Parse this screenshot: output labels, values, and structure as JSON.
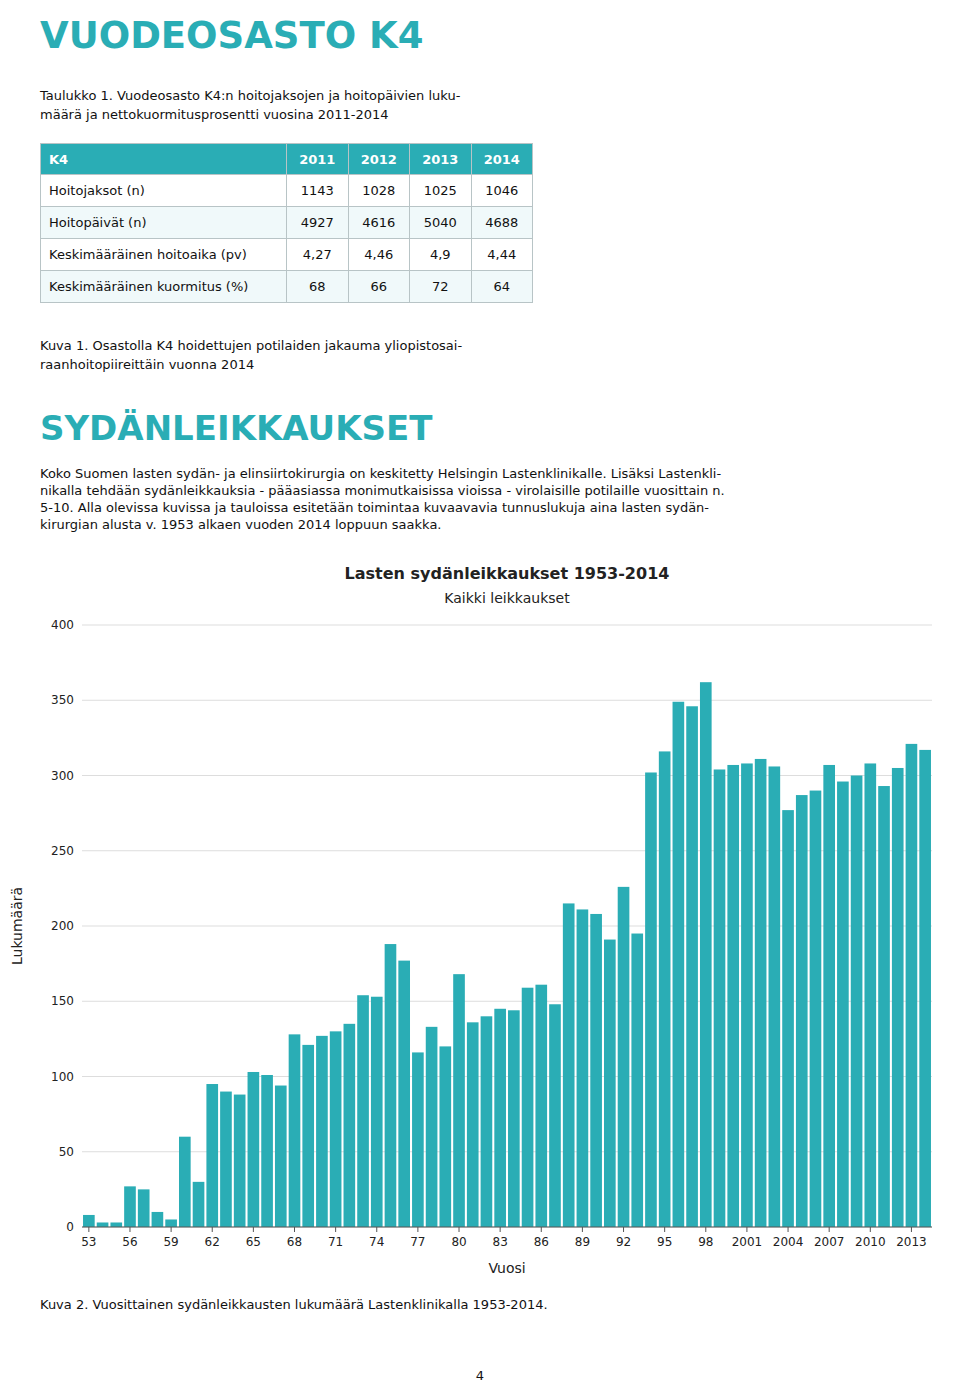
{
  "page_title": "VUODEOSASTO K4",
  "table_caption": [
    "Taulukko 1. Vuodeosasto K4:n hoitojaksojen ja hoitopäivien luku-",
    "määrä ja nettokuormitusprosentti vuosina 2011-2014"
  ],
  "table": {
    "header": [
      "K4",
      "2011",
      "2012",
      "2013",
      "2014"
    ],
    "rows": [
      [
        "Hoitojaksot (n)",
        "1143",
        "1028",
        "1025",
        "1046"
      ],
      [
        "Hoitopäivät (n)",
        "4927",
        "4616",
        "5040",
        "4688"
      ],
      [
        "Keskimääräinen hoitoaika (pv)",
        "4,27",
        "4,46",
        "4,9",
        "4,44"
      ],
      [
        "Keskimääräinen kuormitus (%)",
        "68",
        "66",
        "72",
        "64"
      ]
    ],
    "header_color": "#2aadb5"
  },
  "kuva1_caption": [
    "Kuva 1. Osastolla K4 hoidettujen potilaiden jakauma yliopistosai-",
    "raanhoitopiireittäin vuonna 2014"
  ],
  "section_title": "SYDÄNLEIKKAUKSET",
  "body_text": [
    "Koko Suomen lasten sydän- ja elinsiirtokirurgia on keskitetty Helsingin Lastenklinikalle. Lisäksi Lastenkli-",
    "nikalla tehdään sydänleikkauksia - pääasiassa monimutkaisissa vioissa - virolaisille potilaille vuosittain n.",
    "5-10. Alla olevissa kuvissa ja tauloissa esitetään toimintaa kuvaavavia tunnuslukuja aina lasten sydän-",
    "kirurgian alusta v. 1953 alkaen vuoden 2014 loppuun saakka."
  ],
  "chart_data": {
    "type": "bar",
    "title": "Lasten sydänleikkaukset 1953-2014",
    "subtitle": "Kaikki leikkaukset",
    "x_label": "Vuosi",
    "y_label": "Lukumäärä",
    "color": "#2aadb5",
    "categories": [
      "53",
      null,
      null,
      "56",
      null,
      null,
      "59",
      null,
      null,
      "62",
      null,
      null,
      "65",
      null,
      null,
      "68",
      null,
      null,
      "71",
      null,
      null,
      "74",
      null,
      null,
      "77",
      null,
      null,
      "80",
      null,
      null,
      "83",
      null,
      null,
      "86",
      null,
      null,
      "89",
      null,
      null,
      "92",
      null,
      null,
      "95",
      null,
      null,
      "98",
      null,
      null,
      "2001",
      null,
      null,
      "2004",
      null,
      null,
      "2007",
      null,
      null,
      "2010",
      null,
      null,
      "2013",
      null
    ],
    "values": [
      8,
      3,
      3,
      27,
      25,
      10,
      5,
      60,
      30,
      95,
      90,
      88,
      103,
      101,
      94,
      128,
      121,
      127,
      130,
      135,
      154,
      153,
      188,
      177,
      116,
      133,
      120,
      168,
      136,
      140,
      145,
      144,
      159,
      161,
      148,
      215,
      211,
      208,
      191,
      226,
      195,
      302,
      316,
      349,
      346,
      362,
      304,
      307,
      308,
      311,
      306,
      277,
      287,
      290,
      307,
      296,
      300,
      308,
      293,
      305,
      321,
      317
    ],
    "ylim": [
      0,
      400
    ],
    "yticks": [
      0,
      50,
      100,
      150,
      200,
      250,
      300,
      350,
      400
    ],
    "grid": true
  },
  "chart_caption": "Kuva 2. Vuosittainen sydänleikkausten lukumäärä Lastenklinikalla 1953-2014.",
  "page_number": "4"
}
